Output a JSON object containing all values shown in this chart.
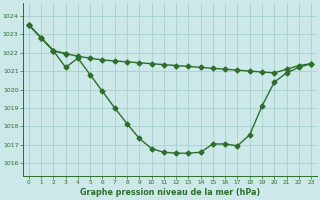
{
  "background_color": "#cce8e8",
  "grid_color": "#aacece",
  "line_color": "#2d6e2d",
  "title": "Graphe pression niveau de la mer (hPa)",
  "xlim": [
    -0.5,
    23.5
  ],
  "ylim": [
    1015.3,
    1024.7
  ],
  "yticks": [
    1016,
    1017,
    1018,
    1019,
    1020,
    1021,
    1022,
    1023,
    1024
  ],
  "xticks": [
    0,
    1,
    2,
    3,
    4,
    5,
    6,
    7,
    8,
    9,
    10,
    11,
    12,
    13,
    14,
    15,
    16,
    17,
    18,
    19,
    20,
    21,
    22,
    23
  ],
  "line1_x": [
    0,
    1,
    2,
    3,
    4,
    5,
    6,
    7,
    8,
    9,
    10,
    11,
    12,
    13,
    14,
    15,
    16,
    17,
    18,
    19,
    20,
    21,
    22,
    23
  ],
  "line1_y": [
    1023.5,
    1022.8,
    1022.1,
    1021.95,
    1021.8,
    1021.7,
    1021.6,
    1021.55,
    1021.5,
    1021.45,
    1021.4,
    1021.35,
    1021.3,
    1021.25,
    1021.2,
    1021.15,
    1021.1,
    1021.05,
    1021.0,
    1020.95,
    1020.9,
    1021.1,
    1021.3,
    1021.4
  ],
  "line2_x": [
    0,
    1,
    2,
    3
  ],
  "line2_y": [
    1023.5,
    1022.8,
    1022.1,
    1021.95
  ],
  "line3_x": [
    0,
    1,
    2,
    3,
    4,
    5,
    6,
    7,
    8,
    9,
    10,
    11,
    12,
    13,
    14,
    15,
    16,
    17,
    18,
    19,
    20,
    21,
    22,
    23
  ],
  "line3_y": [
    1023.5,
    1022.8,
    1022.1,
    1021.2,
    1021.7,
    1020.8,
    1019.9,
    1019.0,
    1018.15,
    1017.35,
    1016.8,
    1016.6,
    1016.55,
    1016.55,
    1016.6,
    1017.05,
    1017.05,
    1016.95,
    1017.55,
    1019.1,
    1020.4,
    1020.9,
    1021.2,
    1021.4
  ],
  "marker_style": "D",
  "marker_size": 2.5,
  "linewidth": 1.0
}
